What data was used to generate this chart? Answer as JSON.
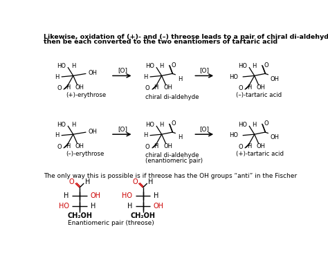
{
  "bg_color": "#ffffff",
  "black": "#000000",
  "red": "#cc0000",
  "title_line1": "Likewise, oxidation of (+)- and (–) threose leads to a pair of chiral di-aldehydes which can",
  "title_line2": "then be each converted to the two enantiomers of tartaric acid",
  "sep_text": "The only way this is possible is if threose has the OH groups “anti” in the Fischer",
  "bottom_label": "Enantiomeric pair (threose)"
}
